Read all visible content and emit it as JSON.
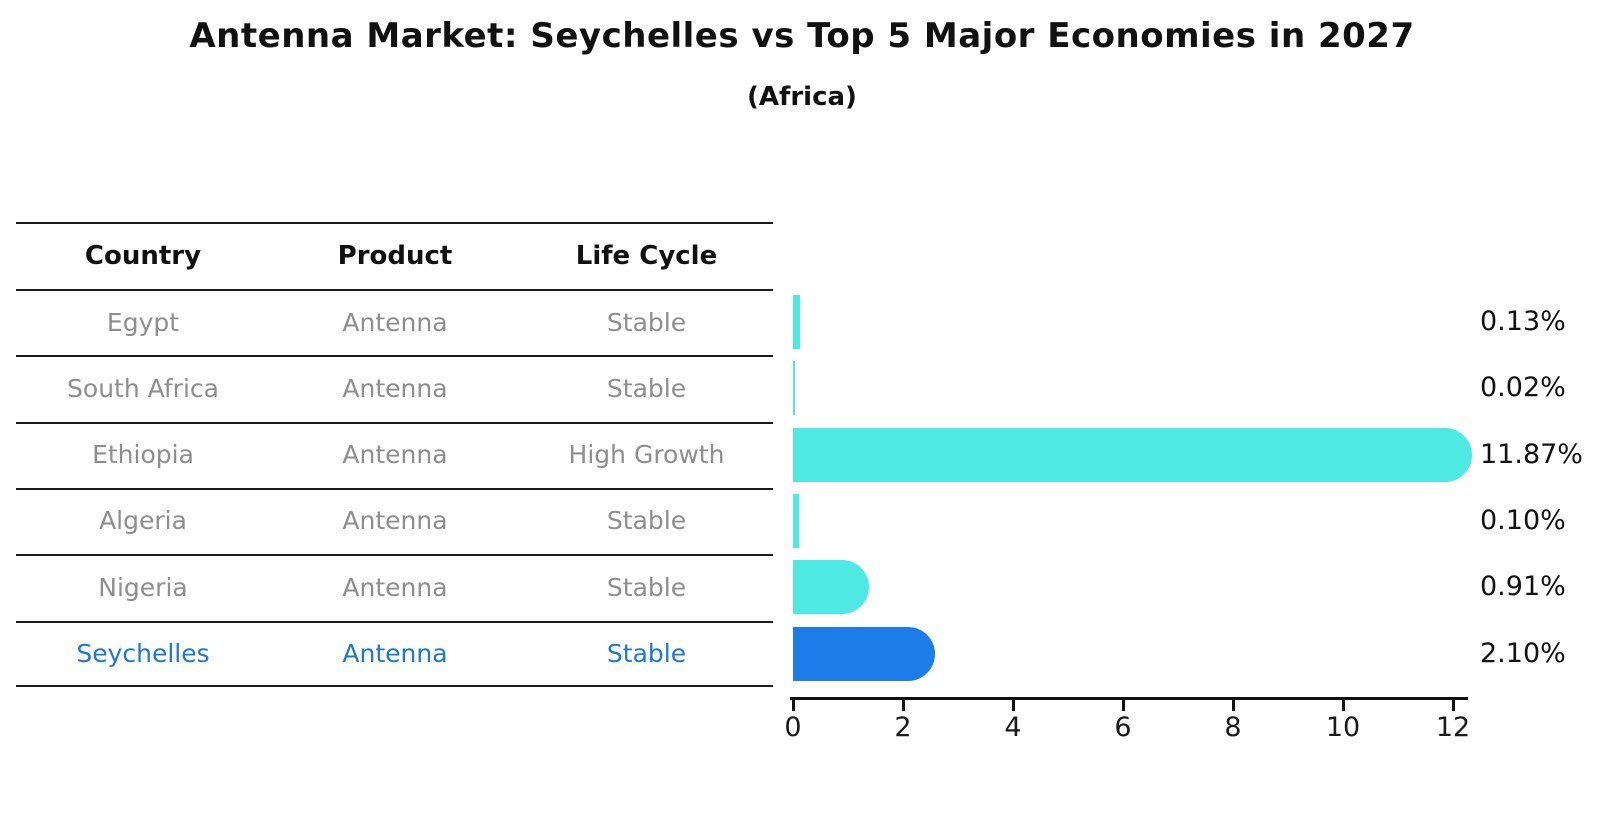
{
  "title": "Antenna Market: Seychelles vs Top 5 Major Economies in 2027",
  "subtitle": "(Africa)",
  "table": {
    "headers": [
      "Country",
      "Product",
      "Life Cycle"
    ],
    "rows": [
      {
        "country": "Egypt",
        "product": "Antenna",
        "life_cycle": "Stable",
        "highlighted": false
      },
      {
        "country": "South Africa",
        "product": "Antenna",
        "life_cycle": "Stable",
        "highlighted": false
      },
      {
        "country": "Ethiopia",
        "product": "Antenna",
        "life_cycle": "High Growth",
        "highlighted": false
      },
      {
        "country": "Algeria",
        "product": "Antenna",
        "life_cycle": "Stable",
        "highlighted": false
      },
      {
        "country": "Nigeria",
        "product": "Antenna",
        "life_cycle": "Stable",
        "highlighted": false
      },
      {
        "country": "Seychelles",
        "product": "Antenna",
        "life_cycle": "Stable",
        "highlighted": true
      }
    ]
  },
  "chart_data": {
    "type": "bar",
    "orientation": "horizontal",
    "title": "Antenna Market: Seychelles vs Top 5 Major Economies in 2027",
    "subtitle": "(Africa)",
    "categories": [
      "Egypt",
      "South Africa",
      "Ethiopia",
      "Algeria",
      "Nigeria",
      "Seychelles"
    ],
    "values": [
      0.13,
      0.02,
      11.87,
      0.1,
      0.91,
      2.1
    ],
    "value_labels": [
      "0.13%",
      "0.02%",
      "11.87%",
      "0.10%",
      "0.91%",
      "2.10%"
    ],
    "unit": "%",
    "xticks": [
      0,
      2,
      4,
      6,
      8,
      10,
      12
    ],
    "xlim": [
      0,
      12.4
    ],
    "grid": false,
    "legend": false,
    "highlight_index": 5,
    "bar_style": {
      "cap": "rounded-right",
      "highlight_edge": "dotted"
    }
  },
  "colors": {
    "bar_default": "#4de9e2",
    "bar_highlight": "#1e7ce8",
    "highlight_text": "#1e78d0",
    "row_text": "#8e8e8e",
    "heading_text": "#111111",
    "line": "#1a1a1a"
  }
}
